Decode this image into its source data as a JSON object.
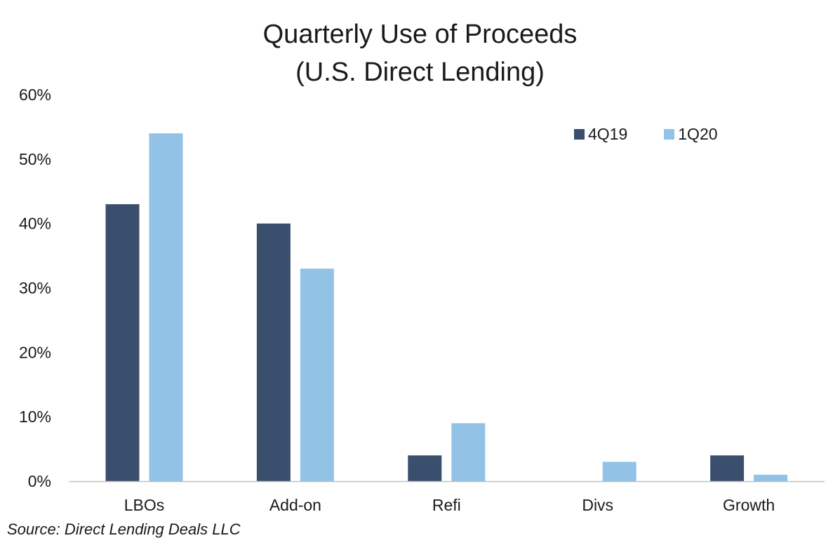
{
  "chart_data": {
    "type": "bar",
    "title_lines": [
      "Quarterly Use of Proceeds",
      "(U.S. Direct Lending)"
    ],
    "categories": [
      "LBOs",
      "Add-on",
      "Refi",
      "Divs",
      "Growth"
    ],
    "series": [
      {
        "name": "4Q19",
        "color": "#3a4f6e",
        "values": [
          43,
          40,
          4,
          0,
          4
        ]
      },
      {
        "name": "1Q20",
        "color": "#92c3e6",
        "values": [
          54,
          33,
          9,
          3,
          1
        ]
      }
    ],
    "ylim": [
      0,
      60
    ],
    "y_ticks": [
      0,
      10,
      20,
      30,
      40,
      50,
      60
    ],
    "y_tick_labels": [
      "0%",
      "10%",
      "20%",
      "30%",
      "40%",
      "50%",
      "60%"
    ],
    "y_unit": "%",
    "xlabel": "",
    "ylabel": "",
    "grid": false,
    "legend_position": "top-right"
  },
  "source": "Source: Direct Lending Deals LLC"
}
